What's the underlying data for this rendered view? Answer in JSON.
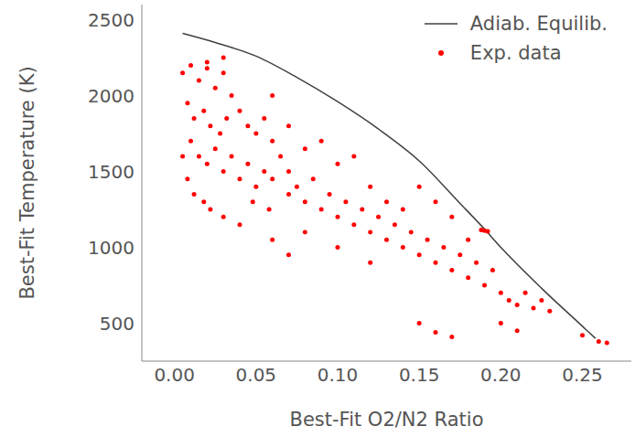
{
  "chart_data": {
    "type": "scatter",
    "x_label": "Best-Fit O2/N2 Ratio",
    "y_label": "Best-Fit Temperature (K)",
    "xlim": [
      -0.02,
      0.28
    ],
    "ylim": [
      250,
      2600
    ],
    "xticks": [
      {
        "value": 0,
        "label": "0.00"
      },
      {
        "value": 0.05,
        "label": "0.05"
      },
      {
        "value": 0.1,
        "label": "0.10"
      },
      {
        "value": 0.15,
        "label": "0.15"
      },
      {
        "value": 0.2,
        "label": "0.20"
      },
      {
        "value": 0.25,
        "label": "0.25"
      }
    ],
    "yticks": [
      500,
      1000,
      1500,
      2000,
      2500
    ],
    "legend": "upper right",
    "grid": false,
    "series": [
      {
        "name": "Adiab. Equilib.",
        "type": "line",
        "color": "#404040",
        "line_style": "solid",
        "x": [
          0.005,
          0.025,
          0.05,
          0.075,
          0.1,
          0.125,
          0.15,
          0.175,
          0.19,
          0.2,
          0.225,
          0.25,
          0.258
        ],
        "values": [
          2410,
          2350,
          2260,
          2120,
          1960,
          1780,
          1570,
          1290,
          1120,
          1000,
          730,
          480,
          400
        ]
      },
      {
        "name": "Exp. data",
        "type": "scatter",
        "color": "#ff0000",
        "marker": "o",
        "x": [
          0.005,
          0.01,
          0.015,
          0.02,
          0.025,
          0.03,
          0.035,
          0.008,
          0.012,
          0.018,
          0.022,
          0.028,
          0.032,
          0.04,
          0.045,
          0.05,
          0.055,
          0.06,
          0.01,
          0.015,
          0.02,
          0.025,
          0.03,
          0.035,
          0.04,
          0.045,
          0.05,
          0.055,
          0.06,
          0.065,
          0.07,
          0.005,
          0.008,
          0.012,
          0.018,
          0.022,
          0.03,
          0.04,
          0.048,
          0.058,
          0.07,
          0.075,
          0.08,
          0.085,
          0.09,
          0.095,
          0.1,
          0.105,
          0.11,
          0.115,
          0.12,
          0.125,
          0.13,
          0.135,
          0.14,
          0.145,
          0.15,
          0.155,
          0.16,
          0.165,
          0.17,
          0.175,
          0.18,
          0.185,
          0.19,
          0.195,
          0.2,
          0.205,
          0.21,
          0.215,
          0.22,
          0.225,
          0.23,
          0.19,
          0.188,
          0.192,
          0.2,
          0.21,
          0.25,
          0.26,
          0.265,
          0.15,
          0.16,
          0.17,
          0.03,
          0.02,
          0.06,
          0.07,
          0.08,
          0.1,
          0.12,
          0.09,
          0.11,
          0.13,
          0.14,
          0.1,
          0.12,
          0.08,
          0.06,
          0.07,
          0.15,
          0.17,
          0.16,
          0.18
        ],
        "values": [
          2150,
          2200,
          2100,
          2180,
          2050,
          2150,
          2000,
          1950,
          1850,
          1900,
          1800,
          1750,
          1850,
          1900,
          1800,
          1750,
          1850,
          1700,
          1700,
          1600,
          1550,
          1650,
          1500,
          1600,
          1450,
          1550,
          1400,
          1500,
          1450,
          1600,
          1500,
          1600,
          1450,
          1350,
          1300,
          1250,
          1200,
          1150,
          1300,
          1250,
          1350,
          1400,
          1300,
          1450,
          1250,
          1350,
          1200,
          1300,
          1150,
          1250,
          1100,
          1200,
          1050,
          1150,
          1000,
          1100,
          950,
          1050,
          900,
          1000,
          850,
          950,
          800,
          900,
          750,
          850,
          700,
          650,
          620,
          700,
          600,
          650,
          580,
          1110,
          1115,
          1105,
          500,
          450,
          420,
          380,
          370,
          500,
          440,
          410,
          2250,
          2220,
          2000,
          1800,
          1650,
          1550,
          1400,
          1700,
          1600,
          1300,
          1250,
          1000,
          900,
          1100,
          1050,
          950,
          1400,
          1200,
          1300,
          1050
        ]
      }
    ]
  }
}
